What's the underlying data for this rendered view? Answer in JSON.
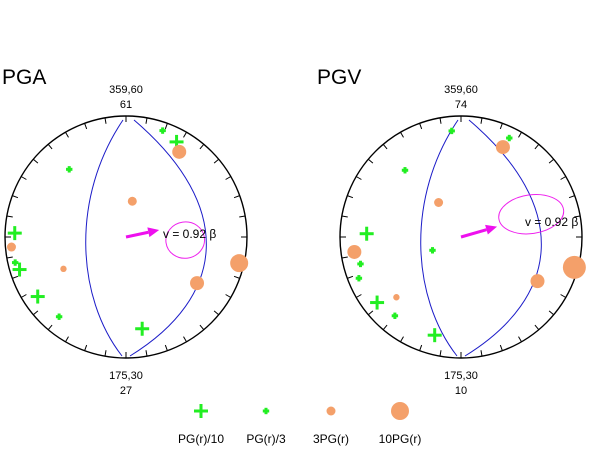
{
  "colors": {
    "nodal_planes": "#1c1cc8",
    "ellipse": "#ee22ee",
    "arrow": "#ee10ee",
    "plus_marker": "#22ee22",
    "circle_marker": "#f4a06a",
    "rim": "#000000"
  },
  "panels": [
    {
      "title": "PGA",
      "top_label": "359,60",
      "top_value": "61",
      "bottom_label": "175,30",
      "bottom_value": "27",
      "velocity_text": "v = 0.92 β",
      "markers": [
        {
          "kind": "plus-large",
          "az": 28,
          "r": 0.89
        },
        {
          "kind": "plus-small",
          "az": 19,
          "r": 0.93
        },
        {
          "kind": "plus-small",
          "az": 320,
          "r": 0.73
        },
        {
          "kind": "circle-small",
          "az": 243,
          "r": 0.58
        },
        {
          "kind": "circle-large",
          "az": 32,
          "r": 0.83
        },
        {
          "kind": "circle-medium",
          "az": 10,
          "r": 0.3
        },
        {
          "kind": "plus-large",
          "az": 272,
          "r": 0.92
        },
        {
          "kind": "circle-medium",
          "az": 265,
          "r": 0.95
        },
        {
          "kind": "plus-small",
          "az": 257,
          "r": 0.94
        },
        {
          "kind": "plus-large",
          "az": 253,
          "r": 0.92
        },
        {
          "kind": "plus-large",
          "az": 236,
          "r": 0.88
        },
        {
          "kind": "plus-small",
          "az": 220,
          "r": 0.86
        },
        {
          "kind": "plus-large",
          "az": 170,
          "r": 0.77
        },
        {
          "kind": "circle-xlarge",
          "az": 103,
          "r": 0.96
        },
        {
          "kind": "circle-large",
          "az": 123,
          "r": 0.7
        }
      ],
      "arrow": {
        "trend": 78,
        "length": 0.28
      },
      "ellipse": {
        "az": 93,
        "r": 0.49,
        "rx": 0.16,
        "ry": 0.15
      }
    },
    {
      "title": "PGV",
      "top_label": "359,60",
      "top_value": "74",
      "bottom_label": "175,30",
      "bottom_value": "10",
      "velocity_text": "v = 0.92 β",
      "markers": [
        {
          "kind": "plus-small",
          "az": 355,
          "r": 0.88
        },
        {
          "kind": "plus-small",
          "az": 26,
          "r": 0.91
        },
        {
          "kind": "plus-small",
          "az": 320,
          "r": 0.72
        },
        {
          "kind": "circle-small",
          "az": 227,
          "r": 0.73
        },
        {
          "kind": "circle-large",
          "az": 25,
          "r": 0.82
        },
        {
          "kind": "circle-medium",
          "az": 327,
          "r": 0.34
        },
        {
          "kind": "plus-small",
          "az": 245,
          "r": 0.26
        },
        {
          "kind": "plus-large",
          "az": 272,
          "r": 0.78
        },
        {
          "kind": "circle-large",
          "az": 262,
          "r": 0.89
        },
        {
          "kind": "plus-small",
          "az": 255,
          "r": 0.86
        },
        {
          "kind": "plus-small",
          "az": 248,
          "r": 0.91
        },
        {
          "kind": "plus-large",
          "az": 232,
          "r": 0.88
        },
        {
          "kind": "plus-small",
          "az": 220,
          "r": 0.85
        },
        {
          "kind": "plus-large",
          "az": 195,
          "r": 0.84
        },
        {
          "kind": "circle-xxlarge",
          "az": 105,
          "r": 0.97
        },
        {
          "kind": "circle-large",
          "az": 120,
          "r": 0.73
        }
      ],
      "arrow": {
        "trend": 74,
        "length": 0.31
      },
      "ellipse": {
        "az": 72,
        "r": 0.61,
        "rx": 0.27,
        "ry": 0.16
      }
    }
  ],
  "legend": [
    {
      "kind": "plus-large",
      "label": "PG(r)/10"
    },
    {
      "kind": "plus-small",
      "label": "PG(r)/3"
    },
    {
      "kind": "circle-medium",
      "label": "3PG(r)"
    },
    {
      "kind": "circle-xlarge",
      "label": "10PG(r)"
    }
  ]
}
